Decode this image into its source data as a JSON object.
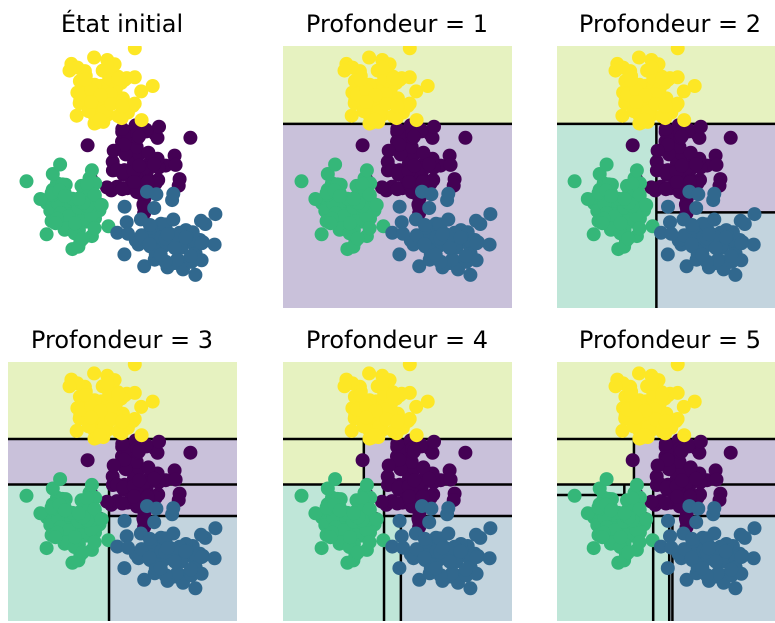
{
  "colors": {
    "yellow": "#fde725",
    "purple": "#440154",
    "green": "#35b779",
    "blue": "#31688e",
    "region_yellow": "#e6f2c0",
    "region_purple": "#c9c1da",
    "region_green": "#bfe6d8",
    "region_blue": "#c3d4de",
    "boundary": "#000000"
  },
  "chart_data": [
    {
      "type": "scatter",
      "title": "État initial",
      "depth": 0
    },
    {
      "type": "scatter",
      "title": "Profondeur = 1",
      "depth": 1
    },
    {
      "type": "scatter",
      "title": "Profondeur = 2",
      "depth": 2
    },
    {
      "type": "scatter",
      "title": "Profondeur = 3",
      "depth": 3
    },
    {
      "type": "scatter",
      "title": "Profondeur = 4",
      "depth": 4
    },
    {
      "type": "scatter",
      "title": "Profondeur = 5",
      "depth": 5
    }
  ],
  "series_names": [
    "yellow",
    "purple",
    "green",
    "blue"
  ],
  "cluster_centers": [
    {
      "name": "yellow",
      "x": -1.6,
      "y": 7.1
    },
    {
      "name": "purple",
      "x": -0.6,
      "y": 5.2
    },
    {
      "name": "green",
      "x": -2.5,
      "y": 4.0
    },
    {
      "name": "blue",
      "x": 0.4,
      "y": 3.0
    }
  ],
  "xlim": [
    -4.4,
    2.4
  ],
  "ylim": [
    1.1,
    8.5
  ]
}
